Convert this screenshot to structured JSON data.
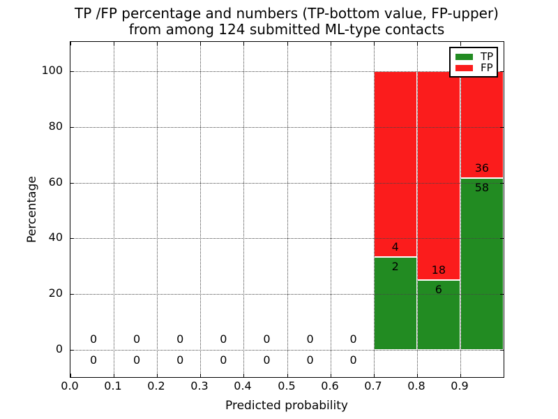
{
  "title": {
    "line1": "TP /FP percentage and numbers (TP-bottom value, FP-upper)",
    "line2": "from among 124 submitted ML-type contacts"
  },
  "axes": {
    "ylabel": "Percentage",
    "xlabel": "Predicted probability",
    "yticks": [
      0,
      20,
      40,
      60,
      80,
      100
    ],
    "xticks": [
      "0.0",
      "0.1",
      "0.2",
      "0.3",
      "0.4",
      "0.5",
      "0.6",
      "0.7",
      "0.8",
      "0.9"
    ],
    "xlim": [
      0,
      1
    ],
    "ylim": [
      -10,
      110.5
    ],
    "grid": "dotted, drawn above bars"
  },
  "legend": [
    {
      "label": "TP",
      "color": "#228B22"
    },
    {
      "label": "FP",
      "color": "#fb1c1c"
    }
  ],
  "colors": {
    "tp": "#228B22",
    "fp": "#fb1c1c",
    "bar_edge": "#ffffff",
    "grid": "#444444"
  },
  "chart_data": {
    "type": "bar",
    "subtype": "stacked-percentage",
    "title": "TP /FP percentage and numbers (TP-bottom value, FP-upper) from among 124 submitted ML-type contacts",
    "xlabel": "Predicted probability",
    "ylabel": "Percentage",
    "total_contacts": 124,
    "bin_width": 0.1,
    "note": "Each non-empty bin stacks TP% (bottom, green) then FP% (top, red) to 100%; counts are printed just below (TP) and above (FP) the TP/FP boundary; empty bins show 0 and 0 around the 0% line",
    "bins": [
      {
        "x0": 0.0,
        "tp_count": 0,
        "fp_count": 0
      },
      {
        "x0": 0.1,
        "tp_count": 0,
        "fp_count": 0
      },
      {
        "x0": 0.2,
        "tp_count": 0,
        "fp_count": 0
      },
      {
        "x0": 0.3,
        "tp_count": 0,
        "fp_count": 0
      },
      {
        "x0": 0.4,
        "tp_count": 0,
        "fp_count": 0
      },
      {
        "x0": 0.5,
        "tp_count": 0,
        "fp_count": 0
      },
      {
        "x0": 0.6,
        "tp_count": 0,
        "fp_count": 0
      },
      {
        "x0": 0.7,
        "tp_count": 2,
        "fp_count": 4
      },
      {
        "x0": 0.8,
        "tp_count": 6,
        "fp_count": 18
      },
      {
        "x0": 0.9,
        "tp_count": 58,
        "fp_count": 36
      }
    ]
  }
}
